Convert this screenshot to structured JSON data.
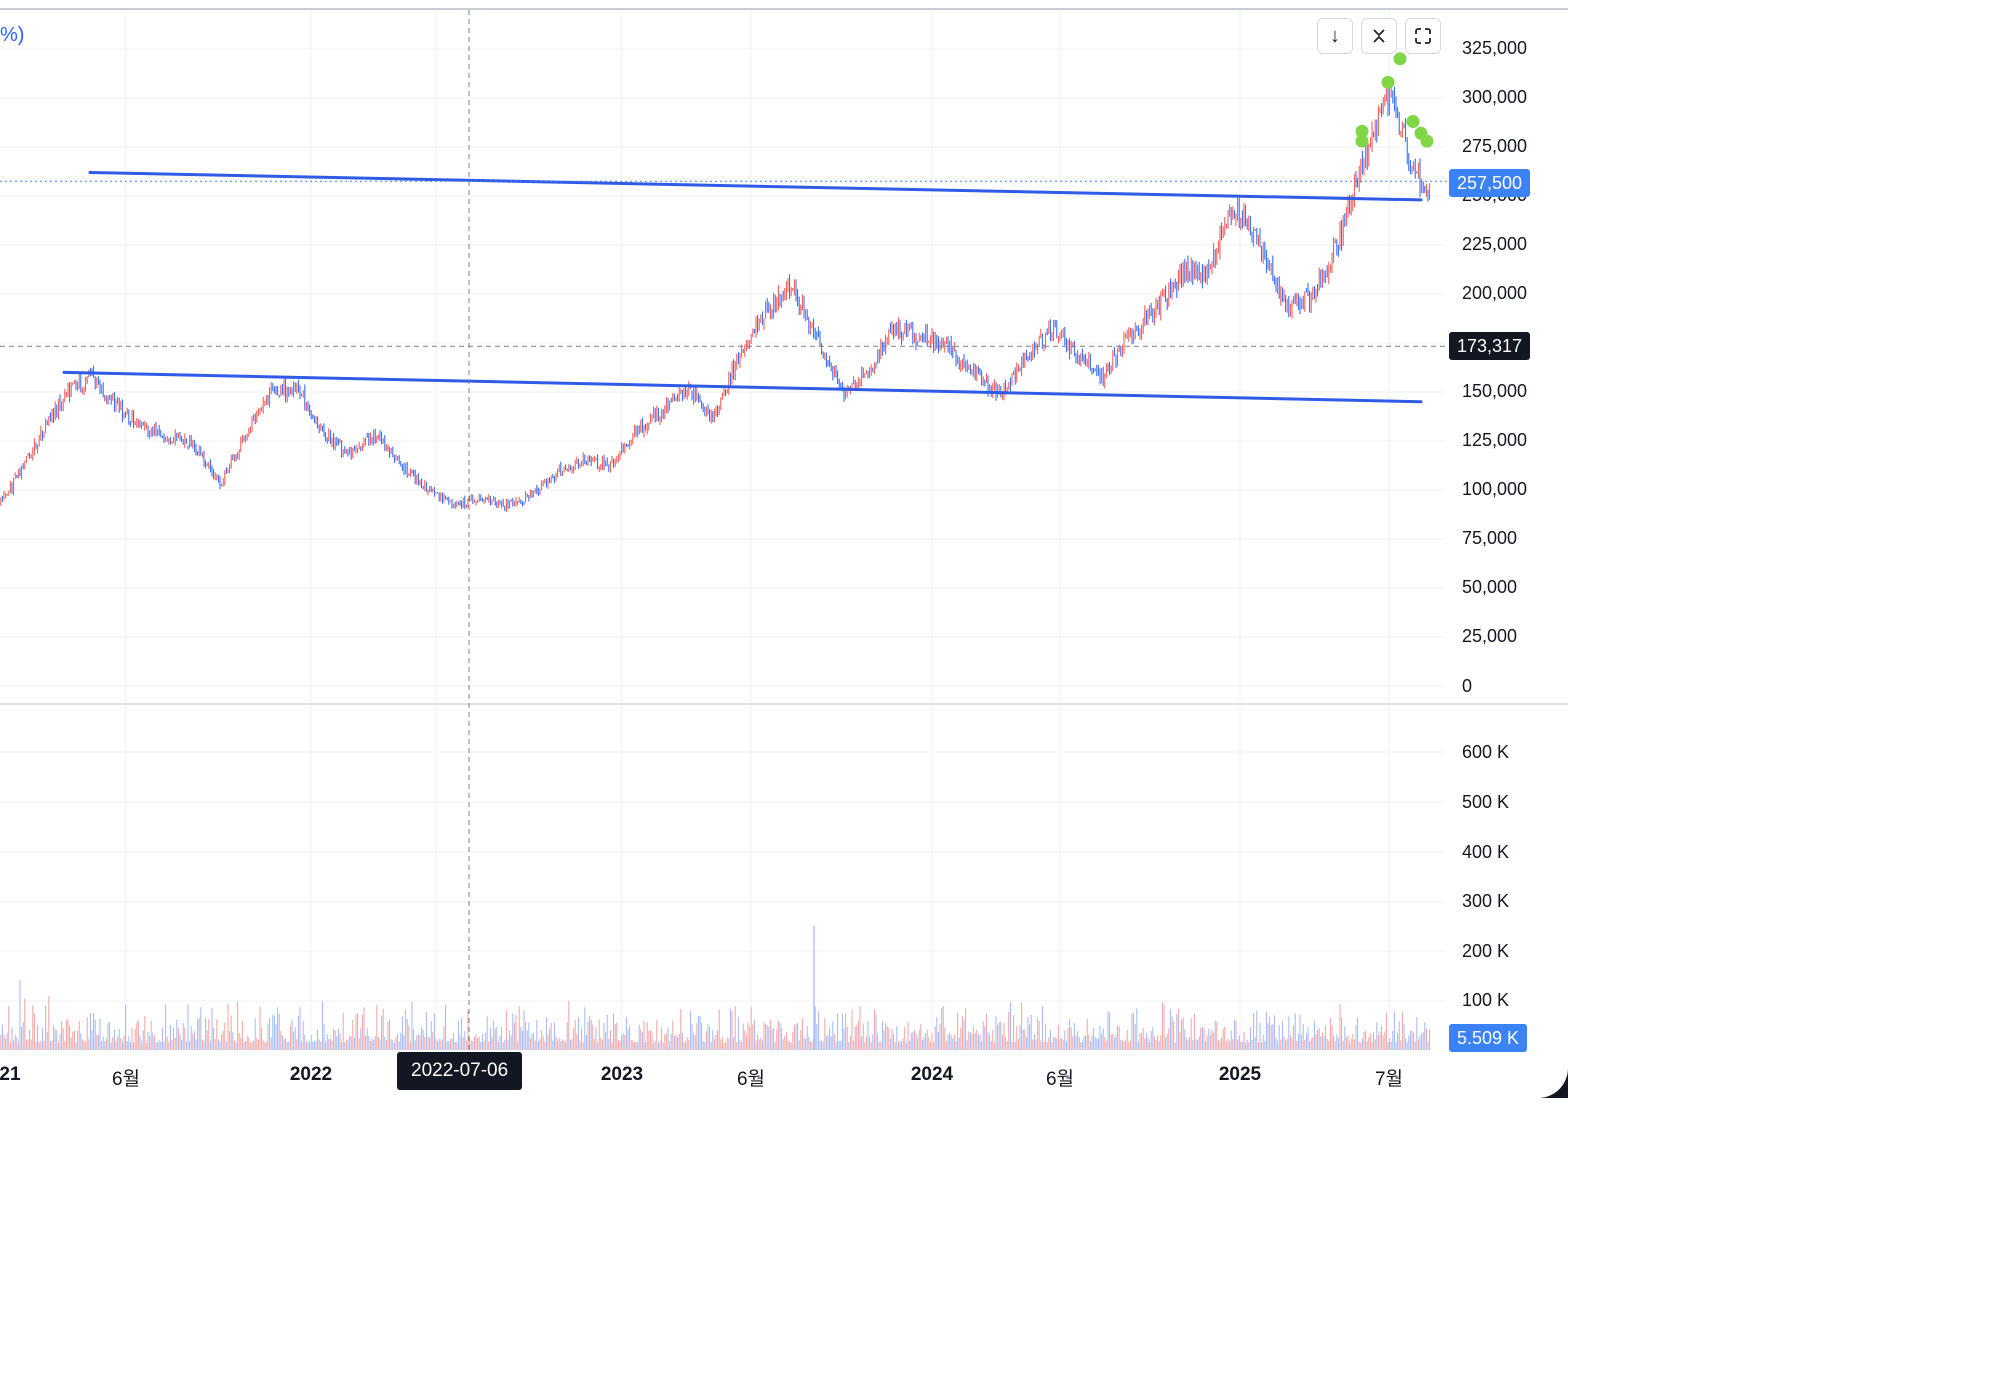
{
  "legend_fragment": "%)",
  "toolbar": {
    "download_icon": "arrow-down-icon",
    "collapse_icon": "collapse-chevrons-icon",
    "fullscreen_icon": "fullscreen-icon"
  },
  "colors": {
    "up": "#ef5350",
    "down": "#2962ff",
    "trendline": "#2f5be6",
    "marker": "#7fd646",
    "last_price_badge": "#3b82f6",
    "crosshair_badge": "#131722"
  },
  "price_axis": {
    "ticks": [
      "325,000",
      "300,000",
      "275,000",
      "250,000",
      "225,000",
      "200,000",
      "150,000",
      "125,000",
      "100,000",
      "75,000",
      "50,000",
      "25,000",
      "0"
    ],
    "last_price_label": "257,500",
    "crosshair_price_label": "173,317"
  },
  "volume_axis": {
    "ticks": [
      "600 K",
      "500 K",
      "400 K",
      "300 K",
      "200 K",
      "100 K"
    ],
    "last_volume_label": "5.509 K"
  },
  "time_axis": {
    "labels": [
      "21",
      "6월",
      "2022",
      "2023",
      "6월",
      "2024",
      "6월",
      "2025",
      "7월"
    ],
    "crosshair_date": "2022-07-06"
  },
  "chart_data": {
    "type": "candlestick",
    "title": "",
    "ylim": [
      0,
      335000
    ],
    "volume_ylim": [
      0,
      650000
    ],
    "last_price": 257500,
    "crosshair": {
      "date": "2022-07-06",
      "price": 173317
    },
    "price_path": [
      [
        "2021-01",
        88000
      ],
      [
        "2021-02",
        102000
      ],
      [
        "2021-03",
        125000
      ],
      [
        "2021-04",
        148000
      ],
      [
        "2021-05",
        158000
      ],
      [
        "2021-06",
        143000
      ],
      [
        "2021-07",
        131000
      ],
      [
        "2021-08",
        128000
      ],
      [
        "2021-09",
        123000
      ],
      [
        "2021-10",
        103000
      ],
      [
        "2021-11",
        128000
      ],
      [
        "2021-12",
        150000
      ],
      [
        "2022-01",
        152000
      ],
      [
        "2022-02",
        128000
      ],
      [
        "2022-03",
        118000
      ],
      [
        "2022-04",
        128000
      ],
      [
        "2022-05",
        112000
      ],
      [
        "2022-06",
        100000
      ],
      [
        "2022-07",
        92000
      ],
      [
        "2022-08",
        96000
      ],
      [
        "2022-09",
        92000
      ],
      [
        "2022-10",
        97000
      ],
      [
        "2022-11",
        110000
      ],
      [
        "2022-12",
        115000
      ],
      [
        "2023-01",
        112000
      ],
      [
        "2023-02",
        130000
      ],
      [
        "2023-03",
        140000
      ],
      [
        "2023-04",
        152000
      ],
      [
        "2023-05",
        137000
      ],
      [
        "2023-06",
        170000
      ],
      [
        "2023-07",
        190000
      ],
      [
        "2023-08",
        205000
      ],
      [
        "2023-09",
        175000
      ],
      [
        "2023-10",
        150000
      ],
      [
        "2023-11",
        162000
      ],
      [
        "2023-12",
        182000
      ],
      [
        "2024-01",
        178000
      ],
      [
        "2024-02",
        172000
      ],
      [
        "2024-03",
        160000
      ],
      [
        "2024-04",
        148000
      ],
      [
        "2024-05",
        168000
      ],
      [
        "2024-06",
        182000
      ],
      [
        "2024-07",
        170000
      ],
      [
        "2024-08",
        158000
      ],
      [
        "2024-09",
        180000
      ],
      [
        "2024-10",
        192000
      ],
      [
        "2024-11",
        210000
      ],
      [
        "2024-12",
        212000
      ],
      [
        "2025-01",
        245000
      ],
      [
        "2025-02",
        225000
      ],
      [
        "2025-03",
        195000
      ],
      [
        "2025-04",
        198000
      ],
      [
        "2025-05",
        225000
      ],
      [
        "2025-06",
        270000
      ],
      [
        "2025-07",
        305000
      ],
      [
        "2025-08",
        257500
      ]
    ],
    "trendlines": [
      {
        "from": [
          "2021-05",
          262000
        ],
        "to": [
          "2025-08",
          248000
        ]
      },
      {
        "from": [
          "2021-05",
          160000
        ],
        "to": [
          "2025-08",
          145000
        ]
      }
    ],
    "markers": [
      [
        "2025-06",
        283000
      ],
      [
        "2025-06",
        278000
      ],
      [
        "2025-07",
        308000
      ],
      [
        "2025-07",
        320000
      ],
      [
        "2025-08",
        288000
      ],
      [
        "2025-08",
        282000
      ],
      [
        "2025-08",
        278000
      ]
    ]
  }
}
